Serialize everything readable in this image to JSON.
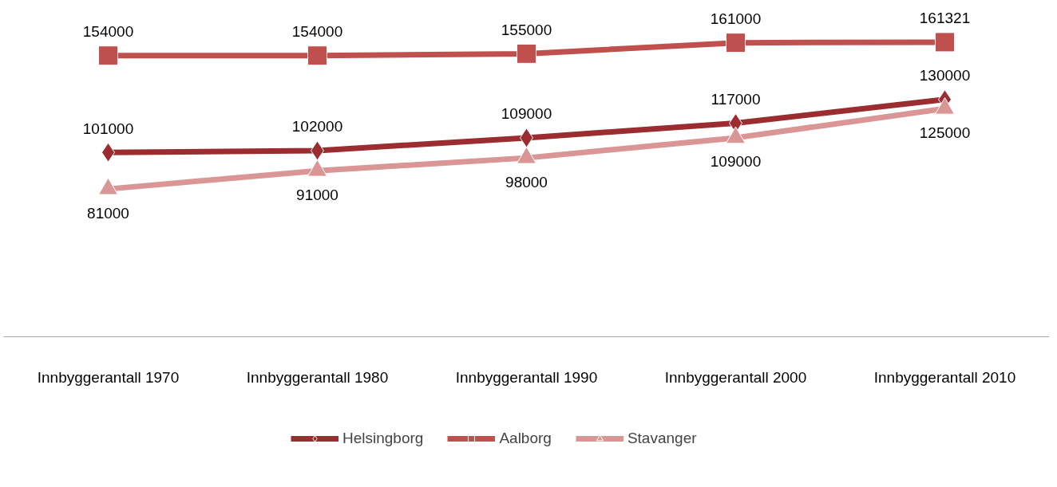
{
  "chart_data": {
    "type": "line",
    "categories": [
      "Innbyggerantall 1970",
      "Innbyggerantall 1980",
      "Innbyggerantall 1990",
      "Innbyggerantall 2000",
      "Innbyggerantall 2010"
    ],
    "series": [
      {
        "name": "Helsingborg",
        "color": "#9b2d30",
        "marker": "diamond",
        "values": [
          101000,
          102000,
          109000,
          117000,
          130000
        ]
      },
      {
        "name": "Aalborg",
        "color": "#c0504d",
        "marker": "square",
        "values": [
          154000,
          154000,
          155000,
          161000,
          161321
        ]
      },
      {
        "name": "Stavanger",
        "color": "#d99694",
        "marker": "triangle",
        "values": [
          81000,
          91000,
          98000,
          109000,
          125000
        ]
      }
    ],
    "data_labels": true,
    "legend": "bottom",
    "grid": false
  }
}
